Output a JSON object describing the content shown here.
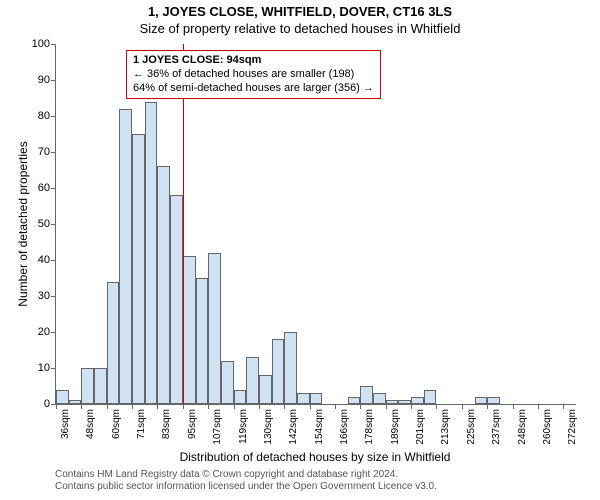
{
  "title_line1": "1, JOYES CLOSE, WHITFIELD, DOVER, CT16 3LS",
  "title_line2": "Size of property relative to detached houses in Whitfield",
  "ylabel": "Number of detached properties",
  "xlabel": "Distribution of detached houses by size in Whitfield",
  "footer_line1": "Contains HM Land Registry data © Crown copyright and database right 2024.",
  "footer_line2": "Contains public sector information licensed under the Open Government Licence v3.0.",
  "chart": {
    "type": "histogram",
    "ylim": [
      0,
      100
    ],
    "yticks": [
      0,
      10,
      20,
      30,
      40,
      50,
      60,
      70,
      80,
      90,
      100
    ],
    "xticks": [
      "36sqm",
      "48sqm",
      "60sqm",
      "71sqm",
      "83sqm",
      "95sqm",
      "107sqm",
      "119sqm",
      "130sqm",
      "142sqm",
      "154sqm",
      "166sqm",
      "178sqm",
      "189sqm",
      "201sqm",
      "213sqm",
      "225sqm",
      "237sqm",
      "248sqm",
      "260sqm",
      "272sqm"
    ],
    "bar_fill": "#cfe2f3",
    "bar_stroke": "#666666",
    "refline_color": "#cc0000",
    "refline_index": 5,
    "annotation": {
      "line1": "1 JOYES CLOSE: 94sqm",
      "line2": "← 36% of detached houses are smaller (198)",
      "line3": "64% of semi-detached houses are larger (356) →"
    },
    "values": [
      4,
      1,
      10,
      10,
      34,
      82,
      75,
      84,
      66,
      58,
      41,
      35,
      42,
      12,
      4,
      13,
      8,
      18,
      20,
      3,
      3,
      0,
      0,
      2,
      5,
      3,
      1,
      1,
      2,
      4,
      0,
      0,
      0,
      2,
      2,
      0,
      0,
      0,
      0,
      0,
      0
    ]
  }
}
